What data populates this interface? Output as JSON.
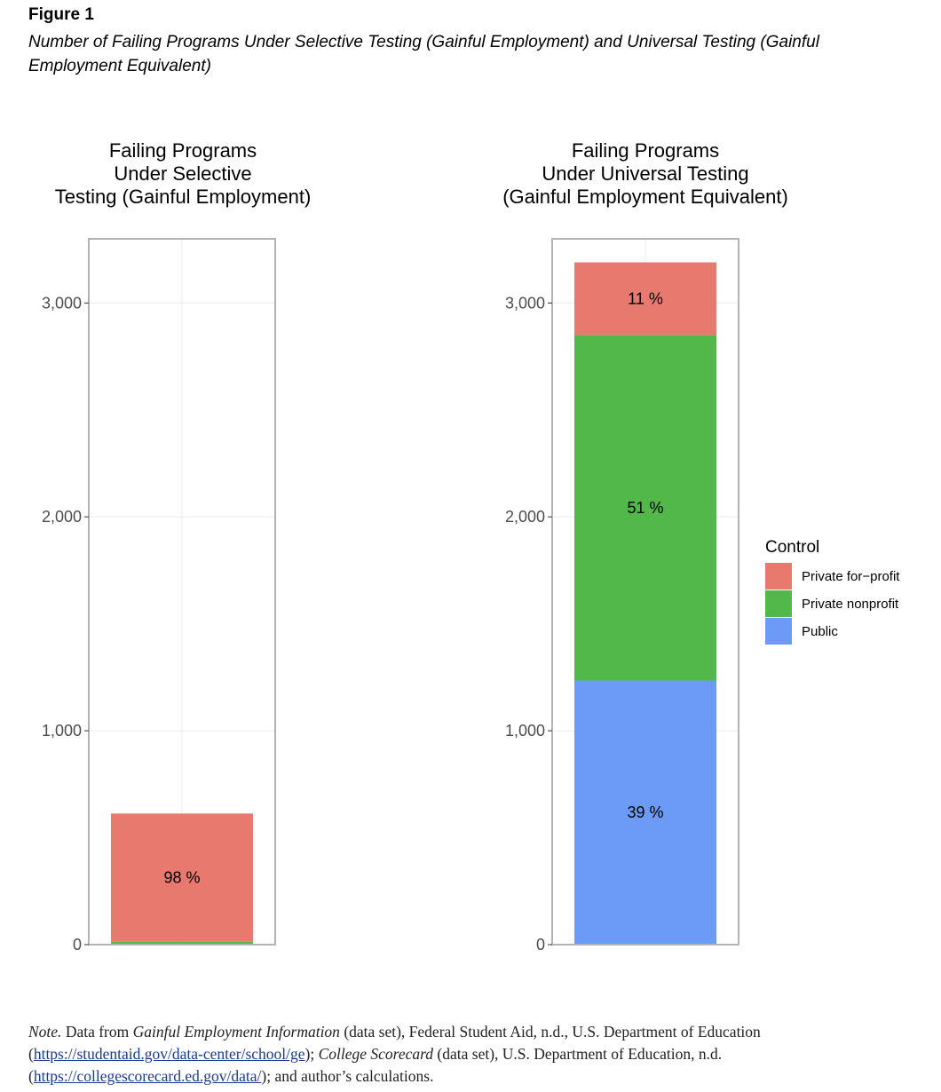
{
  "figure": {
    "label": "Figure 1",
    "caption": "Number of Failing Programs Under Selective Testing (Gainful Employment) and Universal Testing (Gainful Employment Equivalent)"
  },
  "colors": {
    "private_for_profit": "#E8796E",
    "private_nonprofit": "#52B849",
    "public": "#6B9AF7",
    "panel_border": "#b3b3b3",
    "gridline": "#ebebeb"
  },
  "chart_data": [
    {
      "type": "bar",
      "stacked": true,
      "title_lines": [
        "Failing Programs",
        "Under Selective",
        "Testing (Gainful Employment)"
      ],
      "xlabel": "",
      "ylabel": "",
      "ylim": [
        0,
        3300
      ],
      "yticks": [
        0,
        1000,
        2000,
        3000
      ],
      "ytick_labels": [
        "0",
        "1,000",
        "2,000",
        "3,000"
      ],
      "grid": true,
      "series": [
        {
          "name": "Public",
          "values": [
            3
          ],
          "label": ""
        },
        {
          "name": "Private nonprofit",
          "values": [
            10
          ],
          "label": ""
        },
        {
          "name": "Private for−profit",
          "values": [
            600
          ],
          "label": "98 %"
        }
      ]
    },
    {
      "type": "bar",
      "stacked": true,
      "title_lines": [
        "Failing Programs",
        "Under Universal Testing",
        "(Gainful Employment Equivalent)"
      ],
      "xlabel": "",
      "ylabel": "",
      "ylim": [
        0,
        3300
      ],
      "yticks": [
        0,
        1000,
        2000,
        3000
      ],
      "ytick_labels": [
        "0",
        "1,000",
        "2,000",
        "3,000"
      ],
      "grid": true,
      "series": [
        {
          "name": "Public",
          "values": [
            1235
          ],
          "label": "39 %"
        },
        {
          "name": "Private nonprofit",
          "values": [
            1615
          ],
          "label": "51 %"
        },
        {
          "name": "Private for−profit",
          "values": [
            340
          ],
          "label": "11 %"
        }
      ]
    }
  ],
  "legend": {
    "title": "Control",
    "placement": "right",
    "items": [
      {
        "label": "Private for−profit",
        "color": "#E8796E"
      },
      {
        "label": "Private nonprofit",
        "color": "#52B849"
      },
      {
        "label": "Public",
        "color": "#6B9AF7"
      }
    ]
  },
  "note": {
    "prefix": "Note.",
    "t1": " Data from ",
    "src1": "Gainful Employment Information",
    "t2": " (data set), Federal Student Aid, n.d., U.S. Department of Education (",
    "url1": "https://studentaid.gov/data-center/school/ge",
    "t3": "); ",
    "src2": "College Scorecard",
    "t4": " (data set), U.S. Department of Education, n.d. (",
    "url2": "https://collegescorecard.ed.gov/data/",
    "t5": "); and author’s calculations."
  }
}
